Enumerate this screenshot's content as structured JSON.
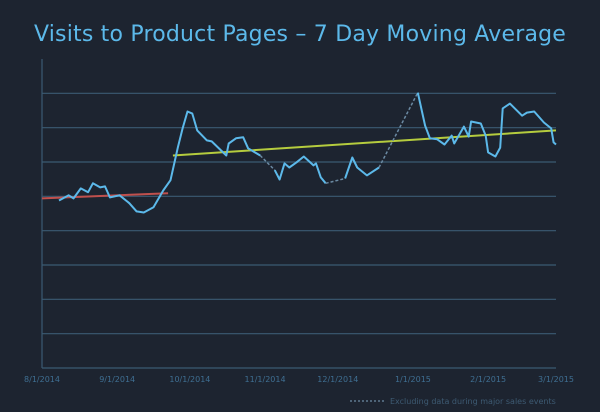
{
  "chart_data": {
    "type": "line",
    "title": "Visits to Product Pages – 7 Day Moving Average",
    "xlabel": "",
    "ylabel": "",
    "x_ticks": [
      "8/1/2014",
      "9/1/2014",
      "10/1/2014",
      "11/1/2014",
      "12/1/2014",
      "1/1/2015",
      "2/1/2015",
      "3/1/2015"
    ],
    "xlim": [
      "2014-08-01",
      "2015-03-01"
    ],
    "ylim": [
      0,
      9
    ],
    "y_tick_labels_shown": false,
    "grid": "horizontal",
    "colors": {
      "background": "#1d2430",
      "series": "#5cb9ea",
      "dashed": "#6b8aa3",
      "trend_before": "#c0504d",
      "trend_after": "#b5cc3e",
      "grid": "#3b5a72",
      "title": "#5cb9ea"
    },
    "segments": [
      {
        "style": "solid",
        "points": [
          [
            "2014-08-08",
            4.88
          ],
          [
            "2014-08-12",
            5.03
          ],
          [
            "2014-08-14",
            4.94
          ],
          [
            "2014-08-17",
            5.23
          ],
          [
            "2014-08-20",
            5.12
          ],
          [
            "2014-08-22",
            5.38
          ],
          [
            "2014-08-25",
            5.26
          ],
          [
            "2014-08-27",
            5.29
          ],
          [
            "2014-08-29",
            4.97
          ],
          [
            "2014-09-02",
            5.03
          ],
          [
            "2014-09-06",
            4.8
          ],
          [
            "2014-09-09",
            4.56
          ],
          [
            "2014-09-12",
            4.53
          ],
          [
            "2014-09-16",
            4.68
          ],
          [
            "2014-09-20",
            5.17
          ],
          [
            "2014-09-23",
            5.47
          ],
          [
            "2014-09-26",
            6.42
          ],
          [
            "2014-09-28",
            6.98
          ],
          [
            "2014-09-30",
            7.47
          ],
          [
            "2014-10-02",
            7.41
          ],
          [
            "2014-10-04",
            6.92
          ],
          [
            "2014-10-08",
            6.63
          ],
          [
            "2014-10-10",
            6.6
          ],
          [
            "2014-10-16",
            6.19
          ],
          [
            "2014-10-17",
            6.54
          ],
          [
            "2014-10-20",
            6.69
          ],
          [
            "2014-10-23",
            6.72
          ],
          [
            "2014-10-25",
            6.4
          ],
          [
            "2014-10-30",
            6.19
          ]
        ]
      },
      {
        "style": "dashed",
        "points": [
          [
            "2014-10-30",
            6.19
          ],
          [
            "2014-11-05",
            5.76
          ]
        ]
      },
      {
        "style": "solid",
        "points": [
          [
            "2014-11-05",
            5.76
          ],
          [
            "2014-11-07",
            5.49
          ],
          [
            "2014-11-09",
            5.96
          ],
          [
            "2014-11-11",
            5.84
          ],
          [
            "2014-11-14",
            5.99
          ],
          [
            "2014-11-17",
            6.16
          ],
          [
            "2014-11-21",
            5.9
          ],
          [
            "2014-11-22",
            5.96
          ],
          [
            "2014-11-24",
            5.55
          ],
          [
            "2014-11-26",
            5.38
          ]
        ]
      },
      {
        "style": "dashed",
        "points": [
          [
            "2014-11-26",
            5.38
          ],
          [
            "2014-12-04",
            5.52
          ]
        ]
      },
      {
        "style": "solid",
        "points": [
          [
            "2014-12-04",
            5.52
          ],
          [
            "2014-12-07",
            6.13
          ],
          [
            "2014-12-09",
            5.84
          ],
          [
            "2014-12-13",
            5.61
          ],
          [
            "2014-12-18",
            5.84
          ]
        ]
      },
      {
        "style": "dashed",
        "points": [
          [
            "2014-12-18",
            5.84
          ],
          [
            "2015-01-03",
            8.02
          ]
        ]
      },
      {
        "style": "solid",
        "points": [
          [
            "2015-01-03",
            8.02
          ],
          [
            "2015-01-06",
            7.06
          ],
          [
            "2015-01-08",
            6.69
          ],
          [
            "2015-01-11",
            6.66
          ],
          [
            "2015-01-14",
            6.51
          ],
          [
            "2015-01-17",
            6.77
          ],
          [
            "2015-01-18",
            6.54
          ],
          [
            "2015-01-22",
            7.03
          ],
          [
            "2015-01-24",
            6.74
          ],
          [
            "2015-01-25",
            7.18
          ],
          [
            "2015-01-29",
            7.12
          ],
          [
            "2015-01-31",
            6.77
          ],
          [
            "2015-02-01",
            6.28
          ],
          [
            "2015-02-04",
            6.16
          ],
          [
            "2015-02-06",
            6.42
          ],
          [
            "2015-02-07",
            7.56
          ],
          [
            "2015-02-10",
            7.7
          ],
          [
            "2015-02-15",
            7.35
          ],
          [
            "2015-02-17",
            7.44
          ],
          [
            "2015-02-20",
            7.47
          ],
          [
            "2015-02-24",
            7.15
          ],
          [
            "2015-02-27",
            6.98
          ],
          [
            "2015-02-28",
            6.57
          ],
          [
            "2015-03-01",
            6.51
          ]
        ]
      }
    ],
    "trend_lines": [
      {
        "color": "#c0504d",
        "points": [
          [
            "2014-08-01",
            4.94
          ],
          [
            "2014-09-22",
            5.09
          ]
        ]
      },
      {
        "color": "#b5cc3e",
        "points": [
          [
            "2014-09-24",
            6.19
          ],
          [
            "2015-03-01",
            6.92
          ]
        ]
      }
    ],
    "legend": {
      "placement": "bottom-right",
      "entries": [
        {
          "label": "Excluding data during major sales events",
          "style": "dashed"
        }
      ]
    }
  }
}
